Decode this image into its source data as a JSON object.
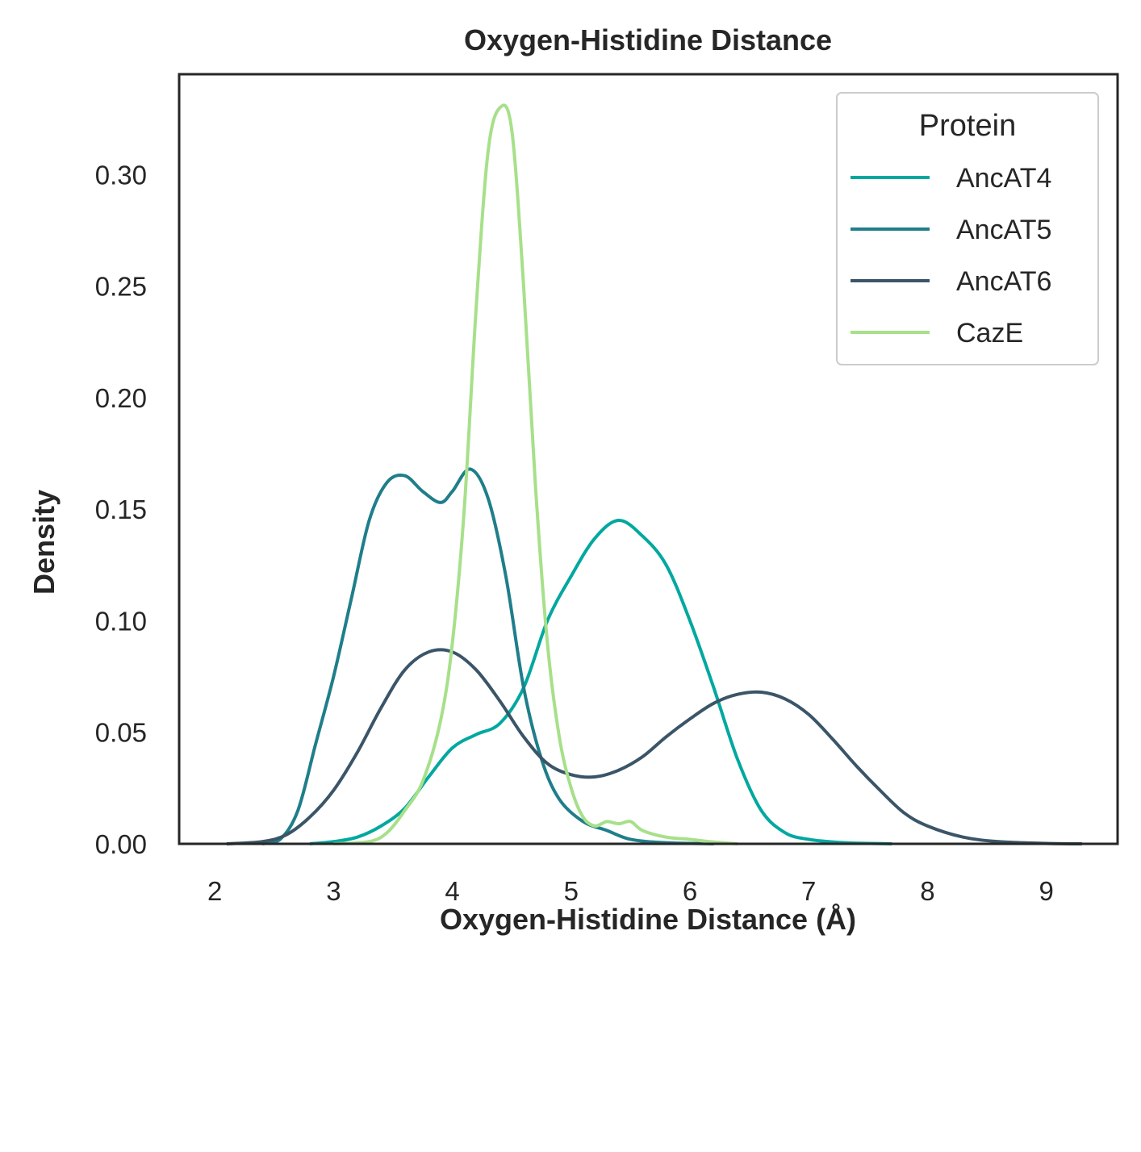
{
  "chart_data": {
    "type": "line",
    "title": "Oxygen-Histidine Distance",
    "xlabel": "Oxygen-Histidine Distance (Å)",
    "ylabel": "Density",
    "xlim": [
      1.7,
      9.6
    ],
    "ylim": [
      0.0,
      0.345
    ],
    "xticks": [
      2,
      3,
      4,
      5,
      6,
      7,
      8,
      9
    ],
    "yticks": [
      0.0,
      0.05,
      0.1,
      0.15,
      0.2,
      0.25,
      0.3
    ],
    "ytick_labels": [
      "0.00",
      "0.05",
      "0.10",
      "0.15",
      "0.20",
      "0.25",
      "0.30"
    ],
    "grid": false,
    "legend": {
      "title": "Protein",
      "position": "top-right"
    },
    "series": [
      {
        "name": "AncAT4",
        "color": "#00a8a0",
        "points": [
          [
            2.8,
            0.0
          ],
          [
            3.0,
            0.001
          ],
          [
            3.2,
            0.003
          ],
          [
            3.4,
            0.008
          ],
          [
            3.6,
            0.016
          ],
          [
            3.8,
            0.03
          ],
          [
            4.0,
            0.043
          ],
          [
            4.2,
            0.049
          ],
          [
            4.4,
            0.054
          ],
          [
            4.6,
            0.07
          ],
          [
            4.8,
            0.1
          ],
          [
            5.0,
            0.12
          ],
          [
            5.2,
            0.137
          ],
          [
            5.4,
            0.145
          ],
          [
            5.6,
            0.138
          ],
          [
            5.8,
            0.125
          ],
          [
            6.0,
            0.1
          ],
          [
            6.2,
            0.07
          ],
          [
            6.4,
            0.038
          ],
          [
            6.6,
            0.015
          ],
          [
            6.8,
            0.005
          ],
          [
            7.0,
            0.002
          ],
          [
            7.3,
            0.0005
          ],
          [
            7.7,
            0.0
          ]
        ]
      },
      {
        "name": "AncAT5",
        "color": "#1f7e8a",
        "points": [
          [
            2.4,
            0.0
          ],
          [
            2.55,
            0.002
          ],
          [
            2.7,
            0.015
          ],
          [
            2.85,
            0.045
          ],
          [
            3.0,
            0.075
          ],
          [
            3.15,
            0.11
          ],
          [
            3.3,
            0.145
          ],
          [
            3.45,
            0.162
          ],
          [
            3.6,
            0.165
          ],
          [
            3.75,
            0.158
          ],
          [
            3.9,
            0.153
          ],
          [
            4.0,
            0.158
          ],
          [
            4.15,
            0.168
          ],
          [
            4.3,
            0.155
          ],
          [
            4.45,
            0.12
          ],
          [
            4.6,
            0.07
          ],
          [
            4.75,
            0.038
          ],
          [
            4.9,
            0.02
          ],
          [
            5.1,
            0.01
          ],
          [
            5.3,
            0.006
          ],
          [
            5.5,
            0.002
          ],
          [
            5.8,
            0.0005
          ],
          [
            6.2,
            0.0
          ]
        ]
      },
      {
        "name": "AncAT6",
        "color": "#3b5568",
        "points": [
          [
            2.1,
            0.0
          ],
          [
            2.4,
            0.001
          ],
          [
            2.6,
            0.004
          ],
          [
            2.8,
            0.012
          ],
          [
            3.0,
            0.024
          ],
          [
            3.2,
            0.041
          ],
          [
            3.4,
            0.061
          ],
          [
            3.6,
            0.078
          ],
          [
            3.8,
            0.086
          ],
          [
            4.0,
            0.086
          ],
          [
            4.2,
            0.078
          ],
          [
            4.4,
            0.064
          ],
          [
            4.6,
            0.048
          ],
          [
            4.8,
            0.036
          ],
          [
            5.0,
            0.031
          ],
          [
            5.2,
            0.03
          ],
          [
            5.4,
            0.033
          ],
          [
            5.6,
            0.039
          ],
          [
            5.8,
            0.048
          ],
          [
            6.0,
            0.056
          ],
          [
            6.2,
            0.063
          ],
          [
            6.4,
            0.067
          ],
          [
            6.6,
            0.068
          ],
          [
            6.8,
            0.065
          ],
          [
            7.0,
            0.058
          ],
          [
            7.2,
            0.047
          ],
          [
            7.4,
            0.035
          ],
          [
            7.6,
            0.024
          ],
          [
            7.8,
            0.014
          ],
          [
            8.0,
            0.008
          ],
          [
            8.3,
            0.003
          ],
          [
            8.6,
            0.001
          ],
          [
            9.0,
            0.0002
          ],
          [
            9.3,
            0.0
          ]
        ]
      },
      {
        "name": "CazE",
        "color": "#a7e08a",
        "points": [
          [
            3.0,
            0.0
          ],
          [
            3.3,
            0.001
          ],
          [
            3.45,
            0.005
          ],
          [
            3.6,
            0.015
          ],
          [
            3.75,
            0.028
          ],
          [
            3.9,
            0.055
          ],
          [
            4.0,
            0.09
          ],
          [
            4.1,
            0.15
          ],
          [
            4.2,
            0.24
          ],
          [
            4.3,
            0.31
          ],
          [
            4.4,
            0.33
          ],
          [
            4.5,
            0.32
          ],
          [
            4.6,
            0.25
          ],
          [
            4.7,
            0.16
          ],
          [
            4.8,
            0.09
          ],
          [
            4.9,
            0.048
          ],
          [
            5.0,
            0.025
          ],
          [
            5.1,
            0.012
          ],
          [
            5.2,
            0.008
          ],
          [
            5.3,
            0.01
          ],
          [
            5.4,
            0.009
          ],
          [
            5.5,
            0.01
          ],
          [
            5.6,
            0.006
          ],
          [
            5.8,
            0.003
          ],
          [
            6.0,
            0.002
          ],
          [
            6.2,
            0.0008
          ],
          [
            6.4,
            0.0
          ]
        ]
      }
    ]
  }
}
